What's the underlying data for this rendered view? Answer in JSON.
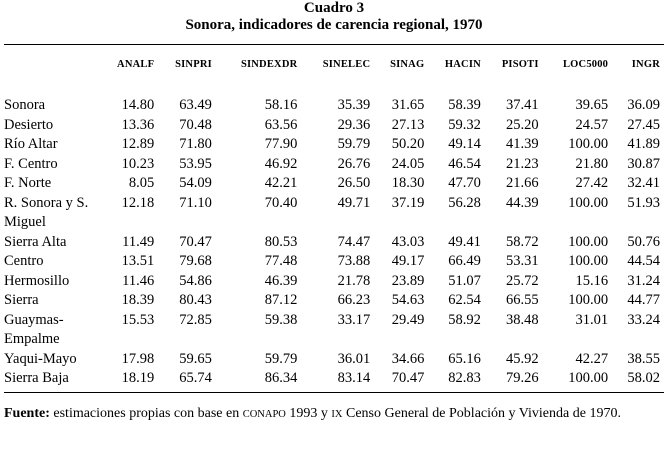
{
  "caption": {
    "line1": "Cuadro 3",
    "line2": "Sonora, indicadores de carencia regional, 1970"
  },
  "table": {
    "headers": [
      "",
      "ANALF",
      "SINPRI",
      "SINDEXDR",
      "SINELEC",
      "SINAG",
      "HACIN",
      "PISOTI",
      "LOC5000",
      "INGR"
    ],
    "rows": [
      {
        "name": "Sonora",
        "values": [
          "14.80",
          "63.49",
          "58.16",
          "35.39",
          "31.65",
          "58.39",
          "37.41",
          "39.65",
          "36.09"
        ]
      },
      {
        "name": "Desierto",
        "values": [
          "13.36",
          "70.48",
          "63.56",
          "29.36",
          "27.13",
          "59.32",
          "25.20",
          "24.57",
          "27.45"
        ]
      },
      {
        "name": "Río Altar",
        "values": [
          "12.89",
          "71.80",
          "77.90",
          "59.79",
          "50.20",
          "49.14",
          "41.39",
          "100.00",
          "41.89"
        ]
      },
      {
        "name": "F. Centro",
        "values": [
          "10.23",
          "53.95",
          "46.92",
          "26.76",
          "24.05",
          "46.54",
          "21.23",
          "21.80",
          "30.87"
        ]
      },
      {
        "name": "F. Norte",
        "values": [
          "8.05",
          "54.09",
          "42.21",
          "26.50",
          "18.30",
          "47.70",
          "21.66",
          "27.42",
          "32.41"
        ]
      },
      {
        "name": "R. Sonora y S. Miguel",
        "values": [
          "12.18",
          "71.10",
          "70.40",
          "49.71",
          "37.19",
          "56.28",
          "44.39",
          "100.00",
          "51.93"
        ]
      },
      {
        "name": "Sierra Alta",
        "values": [
          "11.49",
          "70.47",
          "80.53",
          "74.47",
          "43.03",
          "49.41",
          "58.72",
          "100.00",
          "50.76"
        ]
      },
      {
        "name": "Centro",
        "values": [
          "13.51",
          "79.68",
          "77.48",
          "73.88",
          "49.17",
          "66.49",
          "53.31",
          "100.00",
          "44.54"
        ]
      },
      {
        "name": "Hermosillo",
        "values": [
          "11.46",
          "54.86",
          "46.39",
          "21.78",
          "23.89",
          "51.07",
          "25.72",
          "15.16",
          "31.24"
        ]
      },
      {
        "name": "Sierra",
        "values": [
          "18.39",
          "80.43",
          "87.12",
          "66.23",
          "54.63",
          "62.54",
          "66.55",
          "100.00",
          "44.77"
        ]
      },
      {
        "name": "Guaymas-Empalme",
        "values": [
          "15.53",
          "72.85",
          "59.38",
          "33.17",
          "29.49",
          "58.92",
          "38.48",
          "31.01",
          "33.24"
        ]
      },
      {
        "name": "Yaqui-Mayo",
        "values": [
          "17.98",
          "59.65",
          "59.79",
          "36.01",
          "34.66",
          "65.16",
          "45.92",
          "42.27",
          "38.55"
        ]
      },
      {
        "name": "Sierra Baja",
        "values": [
          "18.19",
          "65.74",
          "86.34",
          "83.14",
          "70.47",
          "82.83",
          "79.26",
          "100.00",
          "58.02"
        ]
      }
    ]
  },
  "footer": {
    "label": "Fuente:",
    "text_a": " estimaciones propias con base en ",
    "org": "CONAPO",
    "text_b": " 1993 y ",
    "ix": "IX",
    "text_c": " Censo General de Población y Vivienda de 1970."
  }
}
